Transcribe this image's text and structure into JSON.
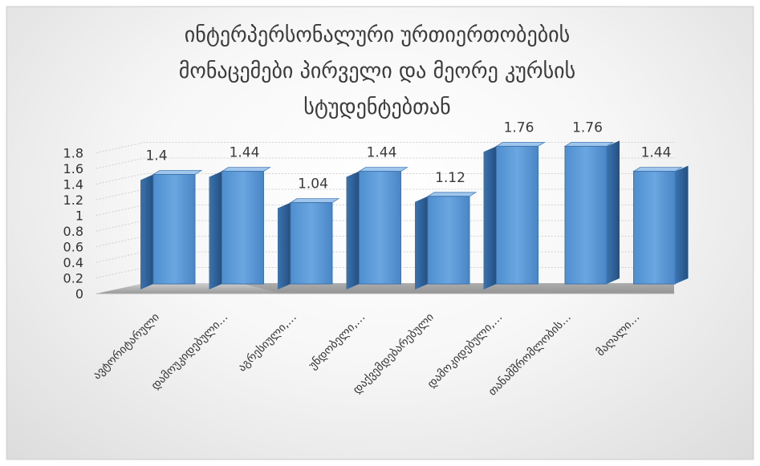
{
  "chart_data": {
    "type": "bar",
    "title_lines": [
      "ინტერპერსონალური ურთიერთობების",
      "მონაცემები პირველი და მეორე კურსის",
      "სტუდენტებთან"
    ],
    "categories": [
      "ავტორიტარული",
      "დამოუკიდებული…",
      "აგრესიული,…",
      "უნდობელი,…",
      "დაქვემდებარებული",
      "დამოკიდებული,…",
      "თანამშრომლობის…",
      "მაღალი…"
    ],
    "values": [
      1.4,
      1.44,
      1.04,
      1.44,
      1.12,
      1.76,
      1.76,
      1.44
    ],
    "data_labels": [
      "1.4",
      "1.44",
      "1.04",
      "1.44",
      "1.12",
      "1.76",
      "1.76",
      "1.44"
    ],
    "ytick_labels": [
      "0",
      "0.2",
      "0.4",
      "0.6",
      "0.8",
      "1",
      "1.2",
      "1.4",
      "1.6",
      "1.8"
    ],
    "ylim": [
      0,
      1.8
    ],
    "grid": true,
    "style": "3d-column",
    "colors": {
      "bar_front": "#5b9bd5",
      "bar_side": "#2e5f96",
      "bar_top": "#9cc3ea",
      "floor": "#a6a6a6"
    }
  }
}
